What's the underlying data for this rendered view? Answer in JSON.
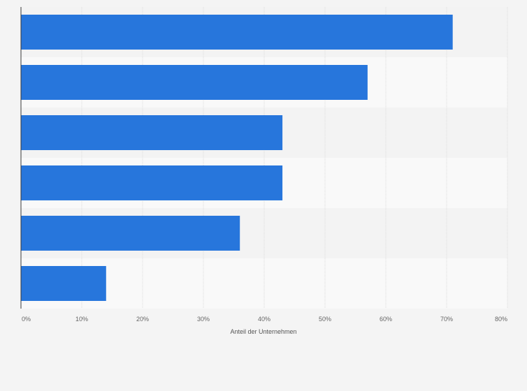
{
  "chart_data": {
    "type": "bar",
    "orientation": "horizontal",
    "title": "",
    "categories": [
      "",
      "",
      "",
      "",
      "",
      ""
    ],
    "values": [
      71,
      57,
      43,
      43,
      36,
      14
    ],
    "xlabel": "Anteil der Unternehmen",
    "ylabel": "",
    "xlim": [
      0,
      80
    ],
    "x_ticks": [
      0,
      10,
      20,
      30,
      40,
      50,
      60,
      70,
      80
    ],
    "x_tick_labels": [
      "0%",
      "10%",
      "20%",
      "30%",
      "40%",
      "50%",
      "60%",
      "70%",
      "80%"
    ],
    "grid": true,
    "legend": "none",
    "colors": {
      "bar": "#2776dc",
      "band_light": "#f9f9f9",
      "band_dark": "#f3f3f3",
      "grid": "#dcdcdc",
      "axis": "#3a3a3a"
    }
  }
}
